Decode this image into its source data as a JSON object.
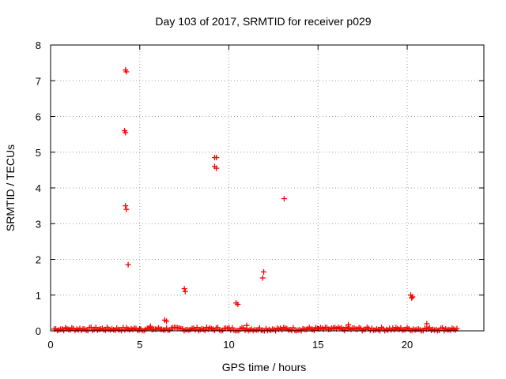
{
  "chart_data": {
    "type": "scatter",
    "title": "Day 103 of 2017, SRMTID for receiver p029",
    "xlabel": "GPS time / hours",
    "ylabel": "SRMTID / TECUs",
    "xlim": [
      0,
      24.3
    ],
    "ylim": [
      0,
      8
    ],
    "xticks": [
      0,
      5,
      10,
      15,
      20
    ],
    "yticks": [
      0,
      1,
      2,
      3,
      4,
      5,
      6,
      7,
      8
    ],
    "grid": true,
    "marker": "plus",
    "marker_color": "#ff0000",
    "series": [
      {
        "name": "SRMTID",
        "baseline": {
          "x_start": 0.2,
          "x_end": 22.8,
          "y_min": 0.0,
          "y_max": 0.1
        },
        "points": [
          {
            "x": 4.2,
            "y": 7.3
          },
          {
            "x": 4.25,
            "y": 7.25
          },
          {
            "x": 4.15,
            "y": 5.6
          },
          {
            "x": 4.2,
            "y": 5.55
          },
          {
            "x": 4.2,
            "y": 3.5
          },
          {
            "x": 4.25,
            "y": 3.4
          },
          {
            "x": 4.35,
            "y": 1.85
          },
          {
            "x": 9.2,
            "y": 4.85
          },
          {
            "x": 9.3,
            "y": 4.85
          },
          {
            "x": 9.2,
            "y": 4.6
          },
          {
            "x": 9.3,
            "y": 4.55
          },
          {
            "x": 13.1,
            "y": 3.7
          },
          {
            "x": 11.95,
            "y": 1.65
          },
          {
            "x": 11.9,
            "y": 1.48
          },
          {
            "x": 7.5,
            "y": 1.18
          },
          {
            "x": 7.55,
            "y": 1.1
          },
          {
            "x": 10.4,
            "y": 0.78
          },
          {
            "x": 10.5,
            "y": 0.74
          },
          {
            "x": 20.2,
            "y": 1.0
          },
          {
            "x": 20.3,
            "y": 0.95
          },
          {
            "x": 20.25,
            "y": 0.92
          },
          {
            "x": 6.4,
            "y": 0.3
          },
          {
            "x": 6.5,
            "y": 0.27
          },
          {
            "x": 21.1,
            "y": 0.2
          },
          {
            "x": 16.7,
            "y": 0.17
          },
          {
            "x": 11.0,
            "y": 0.15
          },
          {
            "x": 5.6,
            "y": 0.13
          }
        ]
      }
    ]
  }
}
